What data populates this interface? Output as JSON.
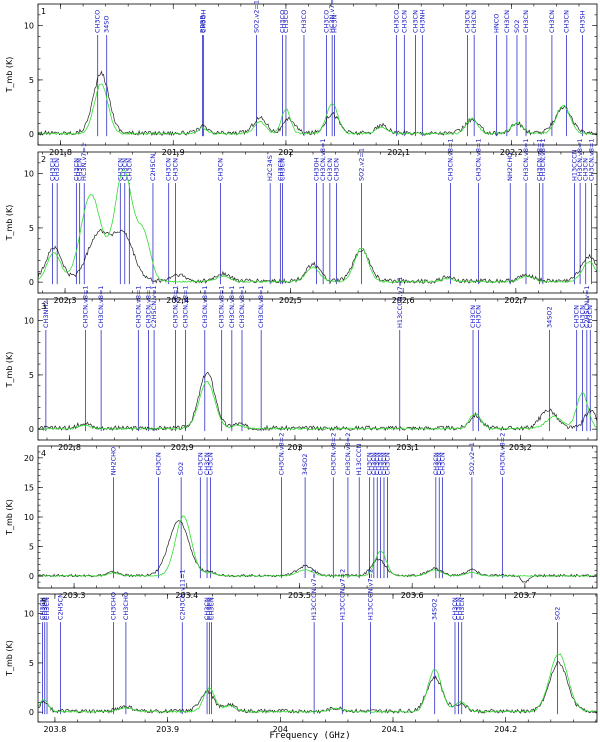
{
  "figure": {
    "xlabel": "Frequency (GHz)",
    "ylabel": "T_mb (K)"
  },
  "colors": {
    "observed": "#202020",
    "model": "#33dd33",
    "lines": "#1010c0"
  },
  "chart_data": [
    {
      "type": "line",
      "panel": "1",
      "xlim": [
        201.78,
        202.276
      ],
      "ylim": [
        -1,
        12
      ],
      "xticks": [
        201.8,
        201.9,
        202,
        202.1,
        202.2
      ],
      "xticklabels": [
        "201.8",
        "201.9",
        "202",
        "202.1",
        "202.2"
      ],
      "yticks": [
        0,
        5,
        10
      ],
      "yticklabels": [
        "0",
        "5",
        "10"
      ],
      "series": [
        {
          "name": "observed",
          "peaks": [
            [
              201.836,
              5.5,
              0.007
            ],
            [
              201.926,
              0.6,
              0.004
            ],
            [
              201.977,
              1.4,
              0.006
            ],
            [
              202.003,
              1.3,
              0.005
            ],
            [
              202.041,
              1.8,
              0.006
            ],
            [
              202.085,
              0.7,
              0.005
            ],
            [
              202.165,
              1.2,
              0.006
            ],
            [
              202.205,
              0.9,
              0.005
            ],
            [
              202.246,
              2.4,
              0.007
            ]
          ]
        },
        {
          "name": "model",
          "peaks": [
            [
              201.836,
              4.6,
              0.006
            ],
            [
              201.926,
              0.5,
              0.004
            ],
            [
              201.977,
              1.1,
              0.005
            ],
            [
              202.0,
              2.3,
              0.004
            ],
            [
              202.041,
              2.8,
              0.005
            ],
            [
              202.085,
              0.6,
              0.005
            ],
            [
              202.165,
              1.4,
              0.005
            ],
            [
              202.205,
              1.0,
              0.005
            ],
            [
              202.246,
              2.6,
              0.006
            ]
          ]
        }
      ],
      "line_markers": [
        {
          "x": 201.833,
          "label": "CH3CO"
        },
        {
          "x": 201.841,
          "label": "34SO"
        },
        {
          "x": 201.926,
          "label": "BBBB"
        },
        {
          "x": 201.927,
          "label": "CH3OH"
        },
        {
          "x": 201.974,
          "label": "SO2,v2=1"
        },
        {
          "x": 201.997,
          "label": "CH3CO"
        },
        {
          "x": 202.0,
          "label": "CH3CO"
        },
        {
          "x": 202.016,
          "label": "CH3CO"
        },
        {
          "x": 202.036,
          "label": "CH3CO"
        },
        {
          "x": 202.041,
          "label": "HC3N,v7=1"
        },
        {
          "x": 202.043,
          "label": "HC3N"
        },
        {
          "x": 202.098,
          "label": "CH3CO"
        },
        {
          "x": 202.105,
          "label": "CH3CN"
        },
        {
          "x": 202.115,
          "label": "CH3CN"
        },
        {
          "x": 202.121,
          "label": "CH3NH"
        },
        {
          "x": 202.161,
          "label": "CH3CN"
        },
        {
          "x": 202.167,
          "label": "CH3CN"
        },
        {
          "x": 202.187,
          "label": "HNCO"
        },
        {
          "x": 202.196,
          "label": "CH3CN"
        },
        {
          "x": 202.205,
          "label": "SO2"
        },
        {
          "x": 202.213,
          "label": "CH3CN"
        },
        {
          "x": 202.236,
          "label": "CH3CN"
        },
        {
          "x": 202.249,
          "label": "CH3CN"
        },
        {
          "x": 202.263,
          "label": "CH3SH"
        }
      ]
    },
    {
      "type": "line",
      "panel": "2",
      "xlim": [
        202.276,
        202.772
      ],
      "ylim": [
        -1,
        12
      ],
      "xticks": [
        202.3,
        202.4,
        202.5,
        202.6,
        202.7
      ],
      "xticklabels": [
        "202.3",
        "202.4",
        "202.5",
        "202.6",
        "202.7"
      ],
      "yticks": [
        0,
        5,
        10
      ],
      "yticklabels": [
        "0",
        "5",
        "10"
      ],
      "series": [
        {
          "name": "observed",
          "peaks": [
            [
              202.29,
              3.1,
              0.007
            ],
            [
              202.33,
              4.4,
              0.01
            ],
            [
              202.352,
              4.1,
              0.009
            ],
            [
              202.4,
              0.6,
              0.006
            ],
            [
              202.44,
              0.7,
              0.006
            ],
            [
              202.52,
              1.6,
              0.006
            ],
            [
              202.563,
              2.9,
              0.007
            ],
            [
              202.64,
              0.4,
              0.005
            ],
            [
              202.71,
              0.6,
              0.006
            ],
            [
              202.765,
              2.3,
              0.007
            ]
          ]
        },
        {
          "name": "model",
          "peaks": [
            [
              202.29,
              2.7,
              0.006
            ],
            [
              202.323,
              8.0,
              0.009
            ],
            [
              202.352,
              10.2,
              0.008
            ],
            [
              202.37,
              4.0,
              0.006
            ],
            [
              202.44,
              0.5,
              0.006
            ],
            [
              202.52,
              1.3,
              0.006
            ],
            [
              202.563,
              3.1,
              0.006
            ],
            [
              202.64,
              0.3,
              0.005
            ],
            [
              202.71,
              0.5,
              0.006
            ],
            [
              202.765,
              1.8,
              0.006
            ]
          ]
        }
      ],
      "line_markers": [
        {
          "x": 202.289,
          "label": "CH3CH"
        },
        {
          "x": 202.293,
          "label": "CH3CN"
        },
        {
          "x": 202.31,
          "label": "CH3CN"
        },
        {
          "x": 202.313,
          "label": "CH3CN"
        },
        {
          "x": 202.317,
          "label": "HC3N,v7=1"
        },
        {
          "x": 202.349,
          "label": "CH3CN"
        },
        {
          "x": 202.353,
          "label": "CH3CN"
        },
        {
          "x": 202.357,
          "label": "CH3CN"
        },
        {
          "x": 202.378,
          "label": "C2H5CN"
        },
        {
          "x": 202.392,
          "label": "CH3CN"
        },
        {
          "x": 202.398,
          "label": "CH3CN"
        },
        {
          "x": 202.438,
          "label": "CH3CN"
        },
        {
          "x": 202.482,
          "label": "H2C34S"
        },
        {
          "x": 202.491,
          "label": "CH3CN"
        },
        {
          "x": 202.493,
          "label": "CH3CN"
        },
        {
          "x": 202.523,
          "label": "CH3OH"
        },
        {
          "x": 202.529,
          "label": "CH3CN,v8=1"
        },
        {
          "x": 202.535,
          "label": "CH3CN"
        },
        {
          "x": 202.541,
          "label": "CH3CN"
        },
        {
          "x": 202.563,
          "label": "SO2,v2=1"
        },
        {
          "x": 202.642,
          "label": "CH3CN,v8=1"
        },
        {
          "x": 202.667,
          "label": "CH3CN,v8=1"
        },
        {
          "x": 202.695,
          "label": "NH2CHO"
        },
        {
          "x": 202.709,
          "label": "CH3CN,v8=1"
        },
        {
          "x": 202.721,
          "label": "CH3CN,v8=1"
        },
        {
          "x": 202.724,
          "label": "CH3CN,v8=1"
        },
        {
          "x": 202.752,
          "label": "H13CCCN"
        },
        {
          "x": 202.757,
          "label": "CH3CN,v8=1"
        },
        {
          "x": 202.762,
          "label": "CH3CN"
        },
        {
          "x": 202.767,
          "label": "CH3CN,v8=1"
        }
      ]
    },
    {
      "type": "line",
      "panel": "3",
      "xlim": [
        202.772,
        203.268
      ],
      "ylim": [
        -1,
        12
      ],
      "xticks": [
        202.8,
        202.9,
        203,
        203.1,
        203.2
      ],
      "xticklabels": [
        "202.8",
        "202.9",
        "203",
        "203.1",
        "203.2"
      ],
      "yticks": [
        0,
        5,
        10
      ],
      "yticklabels": [
        "0",
        "5",
        "10"
      ],
      "series": [
        {
          "name": "observed",
          "peaks": [
            [
              202.813,
              0.5,
              0.005
            ],
            [
              202.922,
              5.1,
              0.007
            ],
            [
              202.95,
              0.4,
              0.005
            ],
            [
              203.16,
              1.2,
              0.005
            ],
            [
              203.225,
              1.7,
              0.007
            ],
            [
              203.262,
              1.6,
              0.005
            ]
          ]
        },
        {
          "name": "model",
          "peaks": [
            [
              202.813,
              0.3,
              0.005
            ],
            [
              202.922,
              4.3,
              0.007
            ],
            [
              202.95,
              0.3,
              0.005
            ],
            [
              203.16,
              1.4,
              0.005
            ],
            [
              203.23,
              1.1,
              0.007
            ],
            [
              203.255,
              3.3,
              0.005
            ]
          ]
        }
      ],
      "line_markers": [
        {
          "x": 202.779,
          "label": "CH3NH2"
        },
        {
          "x": 202.814,
          "label": "CH3CN,v8=1"
        },
        {
          "x": 202.828,
          "label": "CH3CN,v8=1"
        },
        {
          "x": 202.861,
          "label": "CH3CN,v8=1"
        },
        {
          "x": 202.87,
          "label": "CH3CN,v8=1"
        },
        {
          "x": 202.875,
          "label": "C2H5CN,v=1"
        },
        {
          "x": 202.894,
          "label": "CH3CN,v8=1"
        },
        {
          "x": 202.903,
          "label": "CH3CN,v8=1"
        },
        {
          "x": 202.92,
          "label": "CH3CN,v8=1"
        },
        {
          "x": 202.935,
          "label": "CH3CN,v8=1"
        },
        {
          "x": 202.944,
          "label": "CH3CN,v8=1"
        },
        {
          "x": 202.953,
          "label": "CH3CN,v8=1"
        },
        {
          "x": 202.97,
          "label": "CH3CN,v8=1"
        },
        {
          "x": 203.093,
          "label": "H13CCCN,v7=1"
        },
        {
          "x": 203.158,
          "label": "CH3CN"
        },
        {
          "x": 203.163,
          "label": "CH3CN"
        },
        {
          "x": 203.226,
          "label": "34SO2"
        },
        {
          "x": 203.25,
          "label": "CH3CN"
        },
        {
          "x": 203.255,
          "label": "CH3CN"
        },
        {
          "x": 203.259,
          "label": "C2H5CN,v=1"
        },
        {
          "x": 203.262,
          "label": "CH3CN"
        }
      ]
    },
    {
      "type": "line",
      "panel": "4",
      "xlim": [
        203.268,
        203.764
      ],
      "ylim": [
        -2,
        22
      ],
      "xticks": [
        203.3,
        203.4,
        203.5,
        203.6,
        203.7
      ],
      "xticklabels": [
        "203.3",
        "203.4",
        "203.5",
        "203.6",
        "203.7"
      ],
      "yticks": [
        0,
        5,
        10,
        15,
        20
      ],
      "yticklabels": [
        "0",
        "5",
        "10",
        "15",
        "20"
      ],
      "series": [
        {
          "name": "observed",
          "peaks": [
            [
              203.335,
              0.6,
              0.005
            ],
            [
              203.393,
              9.2,
              0.009
            ],
            [
              203.42,
              0.6,
              0.006
            ],
            [
              203.505,
              1.6,
              0.007
            ],
            [
              203.57,
              2.8,
              0.006
            ],
            [
              203.62,
              1.2,
              0.006
            ],
            [
              203.653,
              1.0,
              0.005
            ],
            [
              203.7,
              -1.2,
              0.003
            ]
          ]
        },
        {
          "name": "model",
          "peaks": [
            [
              203.335,
              0.5,
              0.005
            ],
            [
              203.397,
              10.1,
              0.007
            ],
            [
              203.42,
              0.5,
              0.006
            ],
            [
              203.505,
              1.0,
              0.007
            ],
            [
              203.572,
              4.2,
              0.005
            ],
            [
              203.62,
              1.0,
              0.006
            ],
            [
              203.653,
              0.6,
              0.005
            ]
          ]
        }
      ],
      "line_markers": [
        {
          "x": 203.335,
          "label": "NH2CHO"
        },
        {
          "x": 203.375,
          "label": "CH3CN"
        },
        {
          "x": 203.395,
          "label": "SO2"
        },
        {
          "x": 203.412,
          "label": "CH3CN"
        },
        {
          "x": 203.418,
          "label": "CH3CN"
        },
        {
          "x": 203.421,
          "label": "CH3CN"
        },
        {
          "x": 203.484,
          "label": "CH3CN,v8=2"
        },
        {
          "x": 203.505,
          "label": "34SO2"
        },
        {
          "x": 203.53,
          "label": "CH3CN,v8=2"
        },
        {
          "x": 203.543,
          "label": "CH3CN,v8=2"
        },
        {
          "x": 203.553,
          "label": "H13CCCN"
        },
        {
          "x": 203.562,
          "label": "CH3CN"
        },
        {
          "x": 203.566,
          "label": "CH3CN"
        },
        {
          "x": 203.569,
          "label": "CH3CN"
        },
        {
          "x": 203.572,
          "label": "CH3CN"
        },
        {
          "x": 203.575,
          "label": "CH3CN"
        },
        {
          "x": 203.578,
          "label": "CH3CN"
        },
        {
          "x": 203.621,
          "label": "CH3CN"
        },
        {
          "x": 203.624,
          "label": "CH3CN"
        },
        {
          "x": 203.627,
          "label": "CH3CN"
        },
        {
          "x": 203.653,
          "label": "SO2,v2=1"
        },
        {
          "x": 203.68,
          "label": "CH3CN,v8=2"
        }
      ]
    },
    {
      "type": "line",
      "panel": "5",
      "xlim": [
        203.785,
        204.281
      ],
      "ylim": [
        -1,
        12
      ],
      "xticks": [
        203.8,
        203.9,
        204,
        204.1,
        204.2
      ],
      "xticklabels": [
        "203.8",
        "203.9",
        "204",
        "204.1",
        "204.2"
      ],
      "yticks": [
        0,
        5,
        10
      ],
      "yticklabels": [
        "0",
        "5",
        "10"
      ],
      "series": [
        {
          "name": "observed",
          "peaks": [
            [
              203.79,
              0.9,
              0.004
            ],
            [
              203.862,
              0.5,
              0.006
            ],
            [
              203.935,
              2.0,
              0.006
            ],
            [
              203.955,
              0.7,
              0.005
            ],
            [
              204.05,
              0.3,
              0.006
            ],
            [
              204.137,
              3.4,
              0.007
            ],
            [
              204.16,
              0.8,
              0.005
            ],
            [
              204.247,
              4.9,
              0.008
            ]
          ]
        },
        {
          "name": "model",
          "peaks": [
            [
              203.79,
              1.2,
              0.004
            ],
            [
              203.862,
              0.4,
              0.006
            ],
            [
              203.937,
              2.4,
              0.005
            ],
            [
              203.955,
              0.6,
              0.005
            ],
            [
              204.05,
              0.3,
              0.006
            ],
            [
              204.137,
              4.3,
              0.006
            ],
            [
              204.16,
              1.0,
              0.005
            ],
            [
              204.247,
              5.9,
              0.008
            ]
          ]
        }
      ],
      "line_markers": [
        {
          "x": 203.789,
          "label": "CH3CN"
        },
        {
          "x": 203.791,
          "label": "CH3CN"
        },
        {
          "x": 203.793,
          "label": "CH3CN"
        },
        {
          "x": 203.805,
          "label": "C2H5CN"
        },
        {
          "x": 203.852,
          "label": "CH3CHO"
        },
        {
          "x": 203.863,
          "label": "CH3CHO"
        },
        {
          "x": 203.913,
          "label": "C2H3CN,v11=1"
        },
        {
          "x": 203.935,
          "label": "CH3CN"
        },
        {
          "x": 203.937,
          "label": "CH3CN"
        },
        {
          "x": 203.939,
          "label": "CH3CN"
        },
        {
          "x": 204.03,
          "label": "H13CCCN,v7=2"
        },
        {
          "x": 204.055,
          "label": "H13CCCN,v7=2"
        },
        {
          "x": 204.08,
          "label": "H13CCCN,v7=2"
        },
        {
          "x": 204.137,
          "label": "34SO2"
        },
        {
          "x": 204.155,
          "label": "CH3CN"
        },
        {
          "x": 204.158,
          "label": "CH3CN"
        },
        {
          "x": 204.161,
          "label": "CH3CN"
        },
        {
          "x": 204.246,
          "label": "SO2"
        }
      ]
    }
  ]
}
